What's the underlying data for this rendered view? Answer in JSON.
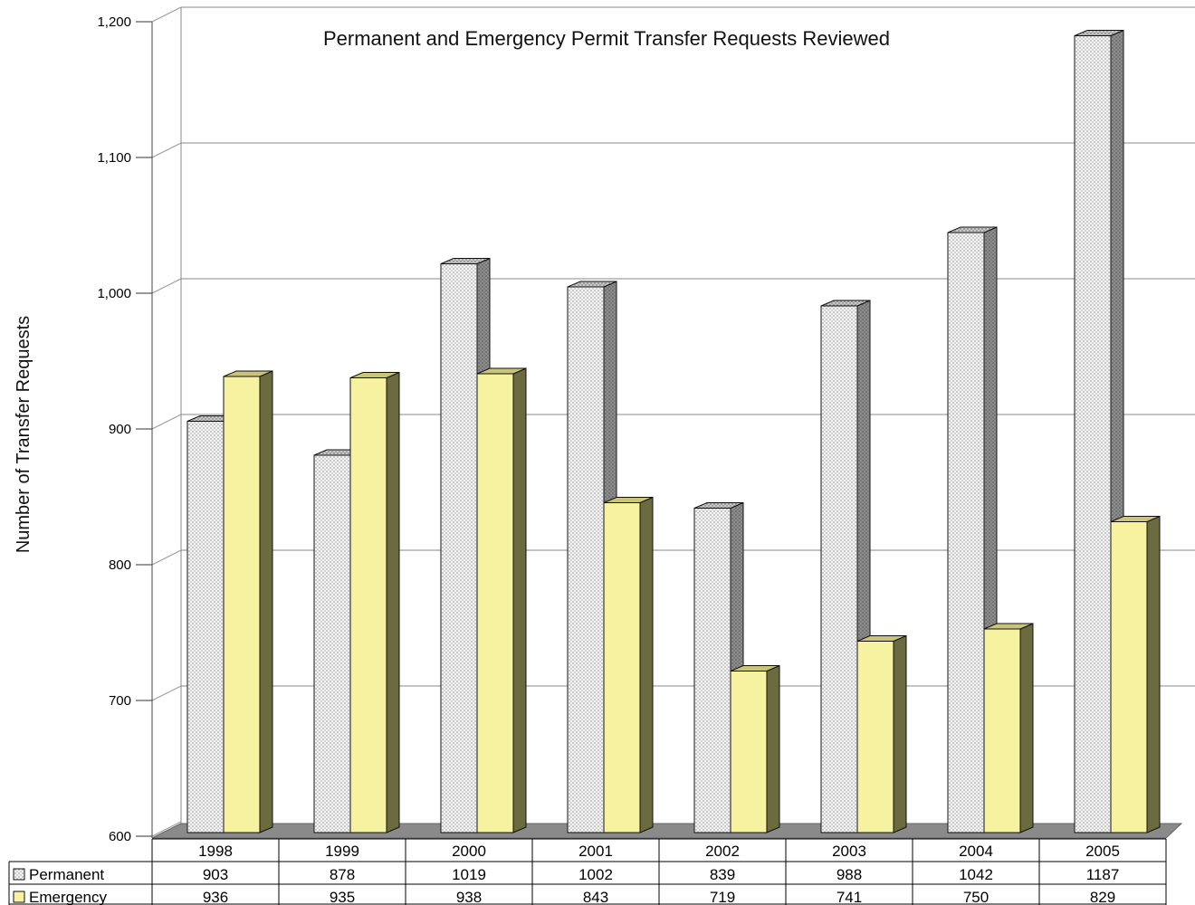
{
  "chart_data": {
    "type": "bar",
    "title": "Permanent and Emergency Permit Transfer Requests Reviewed",
    "ylabel": "Number of Transfer Requests",
    "xlabel": "",
    "ylim": [
      600,
      1200
    ],
    "yticks": [
      600,
      700,
      800,
      900,
      1000,
      1100,
      1200
    ],
    "ytick_labels": [
      "600",
      "700",
      "800",
      "900",
      "1,000",
      "1,100",
      "1,200"
    ],
    "categories": [
      "1998",
      "1999",
      "2000",
      "2001",
      "2002",
      "2003",
      "2004",
      "2005"
    ],
    "series": [
      {
        "name": "Permanent",
        "values": [
          903,
          878,
          1019,
          1002,
          839,
          988,
          1042,
          1187
        ]
      },
      {
        "name": "Emergency",
        "values": [
          936,
          935,
          938,
          843,
          719,
          741,
          750,
          829
        ]
      }
    ],
    "grid": true,
    "legend": "data-table-bottom-left",
    "colors": {
      "permanent_front": "#f4f4f4",
      "permanent_dots": "#7a7a7a",
      "permanent_side": "#7d7d7d",
      "emergency_front": "#f6f2a0",
      "emergency_side": "#6b6b3f",
      "emergency_top": "#c9c47a",
      "floor": "#8a8a8a"
    }
  }
}
